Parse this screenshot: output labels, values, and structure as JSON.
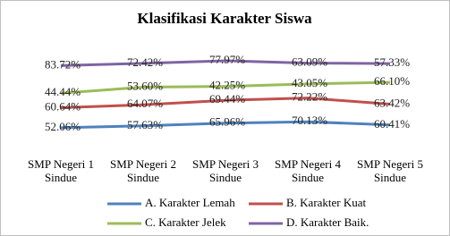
{
  "chart_data": {
    "type": "line",
    "stacked": true,
    "title": "Klasifikasi Karakter Siswa",
    "categories": [
      "SMP Negeri 1 Sindue",
      "SMP Negeri 2 Sindue",
      "SMP Negeri 3 Sindue",
      "SMP Negeri 4 Sindue",
      "SMP Negeri 5 Sindue"
    ],
    "series": [
      {
        "name": "A. Karakter Lemah",
        "color": "#4f81bd",
        "values": [
          52.06,
          57.63,
          65.96,
          70.13,
          60.41
        ],
        "value_labels": [
          "52.06%",
          "57.63%",
          "65.96%",
          "70.13%",
          "60.41%"
        ]
      },
      {
        "name": "B. Karakter Kuat",
        "color": "#c0504d",
        "values": [
          60.64,
          64.07,
          69.44,
          72.22,
          63.42
        ],
        "value_labels": [
          "60.64%",
          "64.07%",
          "69.44%",
          "72.22%",
          "63.42%"
        ]
      },
      {
        "name": "C. Karakter Jelek",
        "color": "#9bbb59",
        "values": [
          44.44,
          53.6,
          42.25,
          43.05,
          66.1
        ],
        "value_labels": [
          "44.44%",
          "53.60%",
          "42.25%",
          "43.05%",
          "66.10%"
        ]
      },
      {
        "name": "D. Karakter Baik.",
        "color": "#8064a2",
        "values": [
          83.72,
          72.42,
          77.97,
          63.09,
          57.33
        ],
        "value_labels": [
          "83.72%",
          "72.42%",
          "77.97%",
          "63.09%",
          "57.33%"
        ]
      }
    ]
  }
}
